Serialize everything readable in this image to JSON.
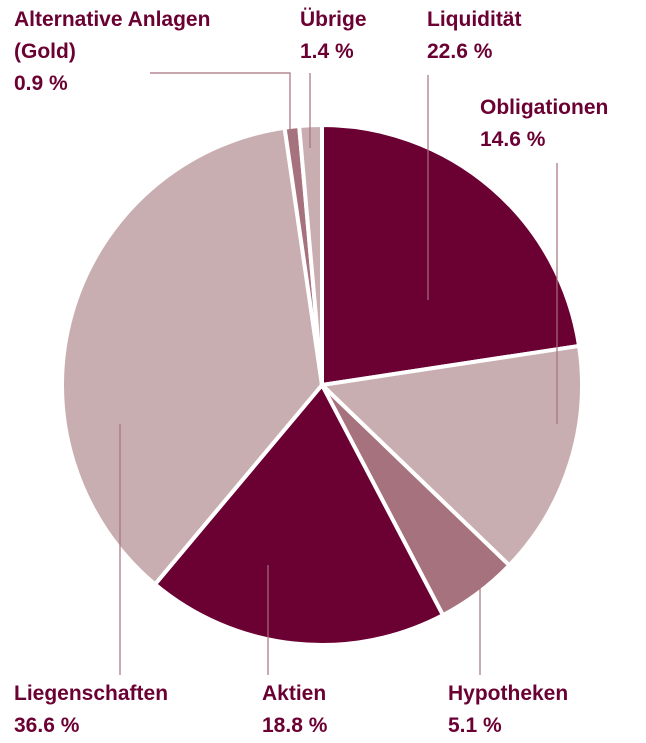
{
  "chart_data": {
    "type": "pie",
    "start": "12 o'clock",
    "direction": "clockwise",
    "slices": [
      {
        "name": "Liquidität",
        "value": 22.6,
        "value_label": "22.6 %",
        "color": "#6b0033"
      },
      {
        "name": "Obligationen",
        "value": 14.6,
        "value_label": "14.6 %",
        "color": "#c9aeb1"
      },
      {
        "name": "Hypotheken",
        "value": 5.1,
        "value_label": "5.1 %",
        "color": "#a6727d"
      },
      {
        "name": "Aktien",
        "value": 18.8,
        "value_label": "18.8 %",
        "color": "#6b0033"
      },
      {
        "name": "Liegenschaften",
        "value": 36.6,
        "value_label": "36.6 %",
        "color": "#c9aeb1"
      },
      {
        "name": "Alternative Anlagen",
        "name_line2": "(Gold)",
        "value": 0.9,
        "value_label": "0.9 %",
        "color": "#a6727d"
      },
      {
        "name": "Übrige",
        "value": 1.4,
        "value_label": "1.4 %",
        "color": "#c9aeb1"
      }
    ],
    "label_color": "#6b0033",
    "leader_color": "#a6727d"
  }
}
